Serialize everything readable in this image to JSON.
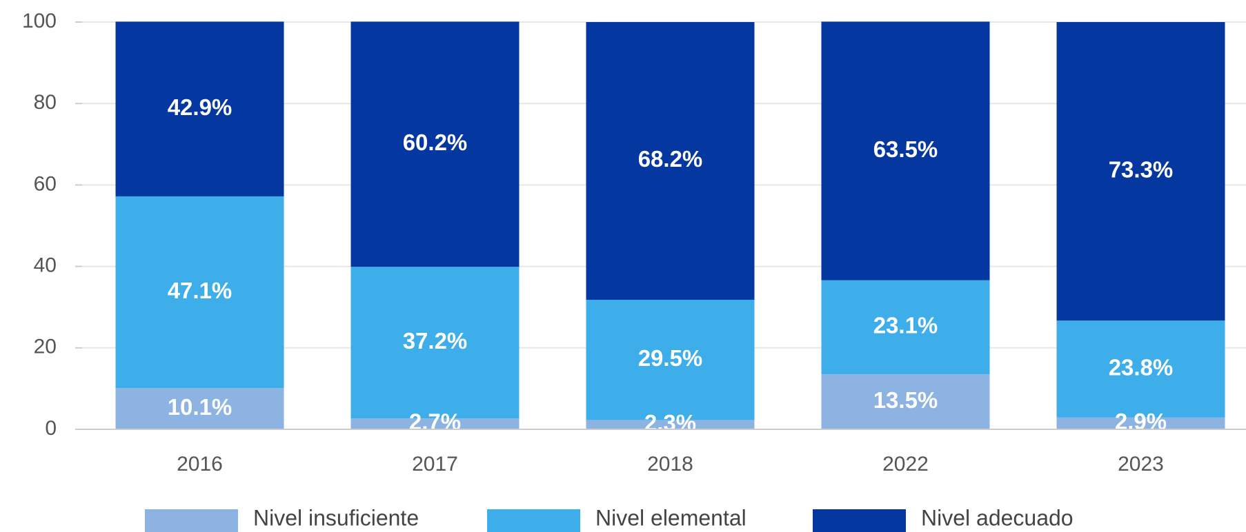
{
  "chart_data": {
    "type": "stacked_bar",
    "categories": [
      "2016",
      "2017",
      "2018",
      "2022",
      "2023"
    ],
    "series": [
      {
        "name": "Nivel insuficiente",
        "color": "#8db3e2",
        "values": [
          10.1,
          2.7,
          2.3,
          13.5,
          2.9
        ],
        "value_labels": [
          "10.1%",
          "2.7%",
          "2.3%",
          "13.5%",
          "2.9%"
        ]
      },
      {
        "name": "Nivel elemental",
        "color": "#3daee9",
        "values": [
          47.1,
          37.2,
          29.5,
          23.1,
          23.8
        ],
        "value_labels": [
          "47.1%",
          "37.2%",
          "29.5%",
          "23.1%",
          "23.8%"
        ]
      },
      {
        "name": "Nivel adecuado",
        "color": "#0537a0",
        "values": [
          42.9,
          60.2,
          68.2,
          63.5,
          73.3
        ],
        "value_labels": [
          "42.9%",
          "60.2%",
          "68.2%",
          "63.5%",
          "73.3%"
        ]
      }
    ],
    "ylim": [
      0,
      100
    ],
    "yticks": [
      0,
      20,
      40,
      60,
      80,
      100
    ],
    "grid": true,
    "legend": "bottom"
  }
}
